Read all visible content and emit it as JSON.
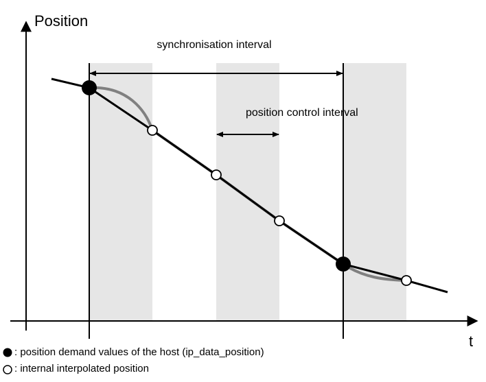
{
  "axes": {
    "y_label": "Position",
    "x_label": "t"
  },
  "annotations": {
    "sync": "synchronisation interval",
    "control": "position control interval"
  },
  "legend": [
    {
      "label": ": position demand values of the host (ip_data_position)"
    },
    {
      "label": ": internal interpolated position"
    }
  ]
}
